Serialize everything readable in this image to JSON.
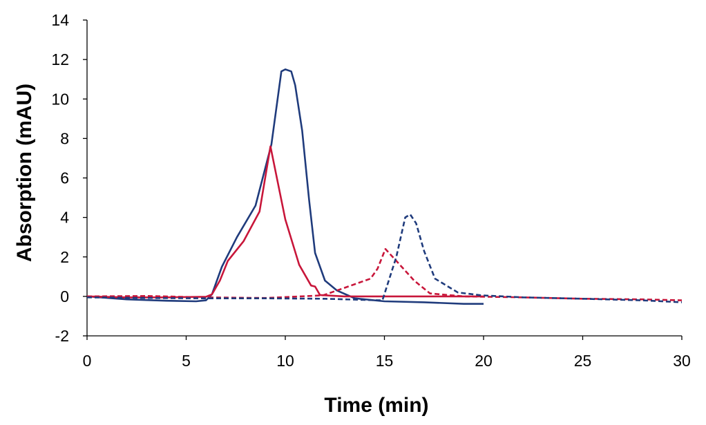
{
  "chart_data": {
    "type": "line",
    "title": "",
    "xlabel": "Time (min)",
    "ylabel": "Absorption (mAU)",
    "xlim": [
      0,
      30
    ],
    "ylim": [
      -2,
      14
    ],
    "xticks": [
      0,
      5,
      10,
      15,
      20,
      25,
      30
    ],
    "yticks": [
      -2,
      0,
      2,
      4,
      6,
      8,
      10,
      12,
      14
    ],
    "grid": false,
    "legend": "none",
    "series": [
      {
        "color": "#1f3b7c",
        "style": "solid",
        "x": [
          0,
          2,
          4,
          5.5,
          6.0,
          6.3,
          6.8,
          7.56,
          8.5,
          9.3,
          9.8,
          10.0,
          10.3,
          10.5,
          10.85,
          11.2,
          11.5,
          12.0,
          12.6,
          13.5,
          15,
          17,
          19,
          20
        ],
        "y": [
          0,
          -0.15,
          -0.22,
          -0.25,
          -0.2,
          0.1,
          1.5,
          3.0,
          4.6,
          7.7,
          11.4,
          11.5,
          11.4,
          10.7,
          8.4,
          4.9,
          2.2,
          0.8,
          0.3,
          -0.1,
          -0.25,
          -0.3,
          -0.38,
          -0.38
        ]
      },
      {
        "color": "#c8163a",
        "style": "solid",
        "x": [
          0,
          2,
          4,
          6.0,
          6.3,
          6.7,
          7.1,
          7.9,
          8.7,
          9.25,
          10.0,
          10.7,
          11.3,
          11.5,
          11.75,
          13,
          16,
          20
        ],
        "y": [
          0,
          -0.05,
          -0.05,
          -0.02,
          0.1,
          0.8,
          1.8,
          2.8,
          4.3,
          7.6,
          3.9,
          1.6,
          0.55,
          0.5,
          0.07,
          0.0,
          0.0,
          0.0
        ]
      },
      {
        "color": "#c8163a",
        "style": "dashed",
        "x": [
          0,
          3,
          6,
          9,
          11.9,
          12.9,
          14.3,
          14.65,
          15.05,
          15.6,
          16.5,
          17.3,
          19,
          22,
          25,
          28,
          30
        ],
        "y": [
          0,
          0.02,
          -0.05,
          -0.08,
          0.05,
          0.4,
          0.9,
          1.4,
          2.4,
          1.8,
          0.8,
          0.15,
          0.0,
          -0.05,
          -0.12,
          -0.15,
          -0.2
        ]
      },
      {
        "color": "#1f3b7c",
        "style": "dashed",
        "x": [
          0,
          3,
          6,
          9,
          12,
          14,
          14.9,
          15.6,
          16.05,
          16.3,
          16.6,
          17.0,
          17.55,
          18.7,
          19.9,
          22,
          25,
          28,
          30
        ],
        "y": [
          -0.05,
          -0.08,
          -0.1,
          -0.1,
          -0.12,
          -0.18,
          -0.2,
          2.0,
          4.0,
          4.15,
          3.7,
          2.3,
          0.9,
          0.2,
          0.05,
          -0.05,
          -0.12,
          -0.2,
          -0.3
        ]
      }
    ]
  }
}
